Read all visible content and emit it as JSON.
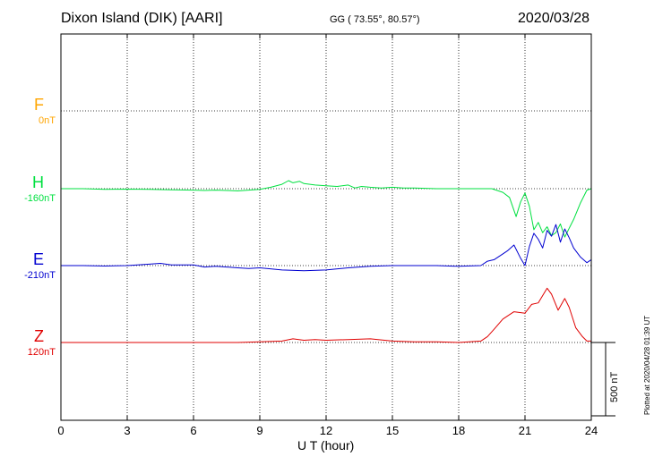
{
  "header": {
    "title": "Dixon Island (DIK)  [AARI]",
    "coords": "GG ( 73.55°,  80.57°)",
    "date": "2020/03/28"
  },
  "components": [
    {
      "name": "F",
      "baseline": "0nT",
      "color": "#ffa500"
    },
    {
      "name": "H",
      "baseline": "-160nT",
      "color": "#00e040"
    },
    {
      "name": "E",
      "baseline": "-210nT",
      "color": "#0000d0"
    },
    {
      "name": "Z",
      "baseline": "120nT",
      "color": "#e00000"
    }
  ],
  "xaxis": {
    "label": "U T (hour)",
    "ticks": [
      "0",
      "3",
      "6",
      "9",
      "12",
      "15",
      "18",
      "21",
      "24"
    ]
  },
  "scale": {
    "label": "500 nT"
  },
  "footer": {
    "plotted": "Plotted at 2020/04/28 01:39 UT"
  },
  "chart_data": {
    "type": "line",
    "title": "Dixon Island (DIK)  [AARI]",
    "xlabel": "U T (hour)",
    "xlim": [
      0,
      24
    ],
    "x_ticks": [
      0,
      3,
      6,
      9,
      12,
      15,
      18,
      21,
      24
    ],
    "grid": true,
    "scale_bar_nT": 500,
    "series": [
      {
        "name": "F",
        "baseline_nT": 0,
        "color": "#ffa500",
        "x": [],
        "y": []
      },
      {
        "name": "H",
        "baseline_nT": -160,
        "color": "#00e040",
        "x": [
          0,
          1,
          2,
          3,
          4,
          5,
          6,
          6.5,
          7,
          7.5,
          8,
          8.5,
          9,
          9.5,
          10,
          10.3,
          10.5,
          10.8,
          11,
          11.5,
          12,
          12.5,
          13,
          13.3,
          13.6,
          14,
          14.5,
          15,
          15.5,
          16,
          17,
          18,
          19,
          19.5,
          20,
          20.3,
          20.6,
          20.8,
          21,
          21.2,
          21.4,
          21.6,
          21.8,
          22,
          22.2,
          22.4,
          22.6,
          22.8,
          23,
          23.2,
          23.5,
          23.8,
          24
        ],
        "y": [
          0,
          0,
          -5,
          -3,
          -5,
          -8,
          -10,
          -12,
          -10,
          -12,
          -15,
          -10,
          -5,
          10,
          30,
          55,
          40,
          50,
          35,
          25,
          20,
          15,
          25,
          5,
          15,
          10,
          5,
          10,
          5,
          5,
          0,
          0,
          0,
          0,
          -25,
          -60,
          -190,
          -90,
          -30,
          -120,
          -280,
          -230,
          -300,
          -260,
          -320,
          -300,
          -240,
          -330,
          -270,
          -210,
          -100,
          -10,
          0
        ]
      },
      {
        "name": "E",
        "baseline_nT": -210,
        "color": "#0000d0",
        "x": [
          0,
          1,
          2,
          3,
          4,
          4.5,
          5,
          6,
          6.5,
          7,
          7.5,
          8,
          8.5,
          9,
          10,
          11,
          12,
          13,
          14,
          15,
          16,
          17,
          18,
          19,
          19.3,
          19.6,
          20,
          20.2,
          20.5,
          20.8,
          21,
          21.2,
          21.4,
          21.6,
          21.8,
          22,
          22.2,
          22.4,
          22.6,
          22.8,
          23,
          23.2,
          23.5,
          23.8,
          24
        ],
        "y": [
          0,
          0,
          -3,
          0,
          10,
          15,
          5,
          5,
          -10,
          -5,
          -10,
          -15,
          -20,
          -15,
          -30,
          -35,
          -30,
          -15,
          -5,
          0,
          0,
          0,
          -5,
          0,
          30,
          40,
          80,
          100,
          140,
          50,
          0,
          130,
          220,
          180,
          120,
          240,
          200,
          280,
          160,
          250,
          190,
          120,
          60,
          20,
          40
        ]
      },
      {
        "name": "Z",
        "baseline_nT": 120,
        "color": "#e00000",
        "x": [
          0,
          2,
          4,
          6,
          8,
          9,
          10,
          10.5,
          11,
          11.5,
          12,
          13,
          14,
          15,
          16,
          17,
          18,
          19,
          19.3,
          19.6,
          20,
          20.5,
          21,
          21.3,
          21.6,
          22,
          22.2,
          22.5,
          22.8,
          23,
          23.3,
          23.6,
          23.8,
          24
        ],
        "y": [
          0,
          0,
          0,
          0,
          0,
          5,
          10,
          25,
          15,
          20,
          15,
          20,
          25,
          10,
          5,
          5,
          0,
          10,
          40,
          90,
          160,
          210,
          200,
          260,
          270,
          370,
          330,
          220,
          300,
          240,
          100,
          40,
          10,
          10
        ]
      }
    ]
  }
}
